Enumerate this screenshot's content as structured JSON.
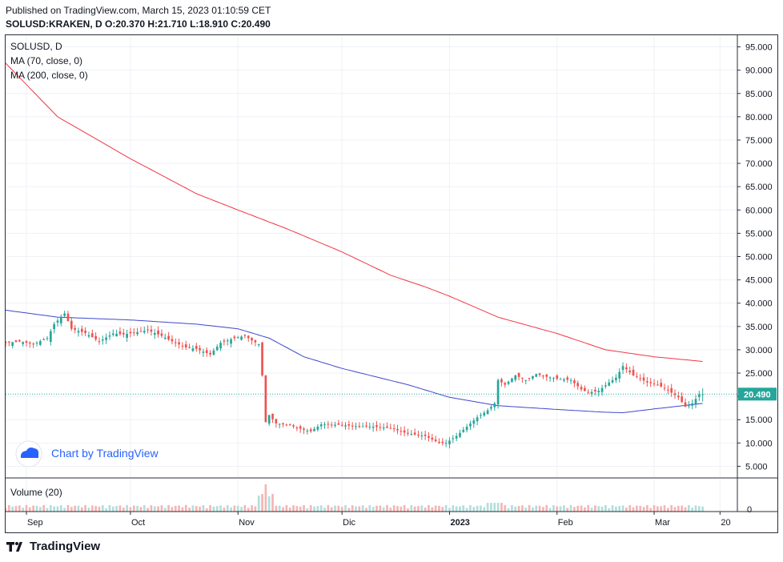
{
  "header": {
    "published": "Published on TradingView.com, March 15, 2023 01:10:59 CET",
    "symbol_line": "SOLUSD:KRAKEN, D  O:20.370  H:21.710  L:18.910  C:20.490"
  },
  "legend": {
    "symbol": "SOLUSD, D",
    "ma70": "MA (70, close, 0)",
    "ma200": "MA (200, close, 0)"
  },
  "watermark": {
    "text": "Chart by TradingView"
  },
  "volume_panel": {
    "label": "Volume (20)",
    "axis_label": "0"
  },
  "price_tag": "20.490",
  "footer": {
    "brand": "TradingView"
  },
  "colors": {
    "up": "#26a69a",
    "down": "#ef5350",
    "ma70": "#3f48cc",
    "ma200": "#f23645",
    "vol_up": "#b2dfdb",
    "vol_down": "#f7b4b4",
    "last_price": "#26a69a",
    "watermark": "#2962ff"
  },
  "chart_data": {
    "type": "candlestick",
    "symbol": "SOLUSD:KRAKEN",
    "interval": "D",
    "last": {
      "open": 20.37,
      "high": 21.71,
      "low": 18.91,
      "close": 20.49
    },
    "y_axis": {
      "ylim": [
        2.5,
        97.5
      ],
      "ticks": [
        "95.000",
        "90.000",
        "85.000",
        "80.000",
        "75.000",
        "70.000",
        "65.000",
        "60.000",
        "55.000",
        "50.000",
        "45.000",
        "40.000",
        "35.000",
        "30.000",
        "25.000",
        "20.000",
        "15.000",
        "10.000",
        "5.000"
      ],
      "scale": "linear",
      "grid": true
    },
    "x_axis": {
      "start": "2022-08-26",
      "end": "2023-03-25",
      "ticks": [
        {
          "label": "Sep",
          "date": "2022-09-01"
        },
        {
          "label": "Oct",
          "date": "2022-10-01"
        },
        {
          "label": "Nov",
          "date": "2022-11-01"
        },
        {
          "label": "Dic",
          "date": "2022-12-01"
        },
        {
          "label": "2023",
          "date": "2023-01-01"
        },
        {
          "label": "Feb",
          "date": "2023-02-01"
        },
        {
          "label": "Mar",
          "date": "2023-03-01"
        },
        {
          "label": "20",
          "date": "2023-03-20"
        }
      ]
    },
    "close_anchors": [
      [
        "2022-08-26",
        31.5
      ],
      [
        "2022-08-30",
        31.8
      ],
      [
        "2022-09-03",
        31.2
      ],
      [
        "2022-09-07",
        32.5
      ],
      [
        "2022-09-09",
        35.5
      ],
      [
        "2022-09-12",
        37.8
      ],
      [
        "2022-09-14",
        34.5
      ],
      [
        "2022-09-18",
        33.6
      ],
      [
        "2022-09-22",
        31.8
      ],
      [
        "2022-09-26",
        33.5
      ],
      [
        "2022-09-29",
        33.3
      ],
      [
        "2022-10-03",
        33.8
      ],
      [
        "2022-10-06",
        34.2
      ],
      [
        "2022-10-10",
        33.0
      ],
      [
        "2022-10-13",
        31.8
      ],
      [
        "2022-10-17",
        30.5
      ],
      [
        "2022-10-20",
        30.2
      ],
      [
        "2022-10-24",
        29.0
      ],
      [
        "2022-10-27",
        31.5
      ],
      [
        "2022-10-31",
        32.5
      ],
      [
        "2022-11-03",
        33.0
      ],
      [
        "2022-11-05",
        32.0
      ],
      [
        "2022-11-07",
        31.2
      ],
      [
        "2022-11-08",
        24.5
      ],
      [
        "2022-11-09",
        14.5
      ],
      [
        "2022-11-10",
        16.0
      ],
      [
        "2022-11-12",
        14.2
      ],
      [
        "2022-11-16",
        13.8
      ],
      [
        "2022-11-20",
        12.8
      ],
      [
        "2022-11-22",
        12.5
      ],
      [
        "2022-11-25",
        14.0
      ],
      [
        "2022-11-30",
        13.9
      ],
      [
        "2022-12-05",
        13.6
      ],
      [
        "2022-12-10",
        13.5
      ],
      [
        "2022-12-15",
        13.2
      ],
      [
        "2022-12-20",
        12.0
      ],
      [
        "2022-12-25",
        11.5
      ],
      [
        "2022-12-29",
        10.0
      ],
      [
        "2022-12-31",
        10.0
      ],
      [
        "2023-01-03",
        11.5
      ],
      [
        "2023-01-06",
        13.5
      ],
      [
        "2023-01-09",
        15.5
      ],
      [
        "2023-01-12",
        17.0
      ],
      [
        "2023-01-14",
        18.5
      ],
      [
        "2023-01-15",
        23.5
      ],
      [
        "2023-01-17",
        22.5
      ],
      [
        "2023-01-20",
        24.5
      ],
      [
        "2023-01-23",
        23.5
      ],
      [
        "2023-01-26",
        24.8
      ],
      [
        "2023-01-29",
        24.2
      ],
      [
        "2023-02-01",
        23.8
      ],
      [
        "2023-02-05",
        23.5
      ],
      [
        "2023-02-08",
        21.5
      ],
      [
        "2023-02-10",
        20.8
      ],
      [
        "2023-02-13",
        21.2
      ],
      [
        "2023-02-16",
        23.0
      ],
      [
        "2023-02-18",
        24.0
      ],
      [
        "2023-02-20",
        26.5
      ],
      [
        "2023-02-23",
        24.5
      ],
      [
        "2023-02-27",
        23.0
      ],
      [
        "2023-03-02",
        22.5
      ],
      [
        "2023-03-05",
        21.3
      ],
      [
        "2023-03-08",
        19.8
      ],
      [
        "2023-03-10",
        17.8
      ],
      [
        "2023-03-12",
        18.5
      ],
      [
        "2023-03-14",
        20.4
      ],
      [
        "2023-03-15",
        20.49
      ]
    ],
    "ma70_anchors": [
      [
        "2022-08-26",
        38.5
      ],
      [
        "2022-09-10",
        37.0
      ],
      [
        "2022-10-01",
        36.4
      ],
      [
        "2022-10-20",
        35.5
      ],
      [
        "2022-11-01",
        34.5
      ],
      [
        "2022-11-10",
        32.5
      ],
      [
        "2022-11-20",
        28.5
      ],
      [
        "2022-12-01",
        26.0
      ],
      [
        "2022-12-20",
        22.5
      ],
      [
        "2023-01-01",
        19.8
      ],
      [
        "2023-01-15",
        18.0
      ],
      [
        "2023-02-01",
        17.2
      ],
      [
        "2023-02-15",
        16.6
      ],
      [
        "2023-02-20",
        16.5
      ],
      [
        "2023-03-01",
        17.3
      ],
      [
        "2023-03-15",
        18.5
      ]
    ],
    "ma200_anchors": [
      [
        "2022-08-26",
        91.5
      ],
      [
        "2022-09-10",
        80.0
      ],
      [
        "2022-10-01",
        71.0
      ],
      [
        "2022-10-20",
        63.5
      ],
      [
        "2022-11-01",
        60.0
      ],
      [
        "2022-11-15",
        56.0
      ],
      [
        "2022-12-01",
        51.0
      ],
      [
        "2022-12-15",
        46.0
      ],
      [
        "2022-12-25",
        43.5
      ],
      [
        "2023-01-01",
        41.5
      ],
      [
        "2023-01-15",
        37.0
      ],
      [
        "2023-02-01",
        33.5
      ],
      [
        "2023-02-15",
        30.0
      ],
      [
        "2023-03-01",
        28.5
      ],
      [
        "2023-03-15",
        27.5
      ]
    ],
    "volume_spike": {
      "date": "2022-11-09",
      "relative": 1.0
    }
  }
}
